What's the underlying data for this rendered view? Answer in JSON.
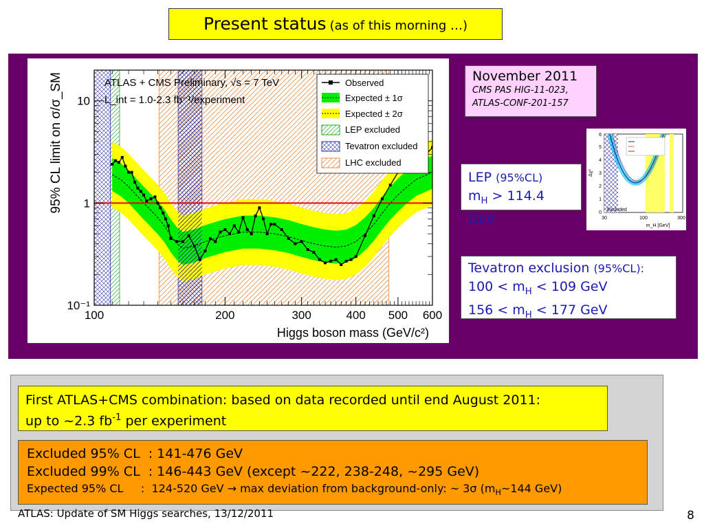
{
  "slide": {
    "title": "Present status",
    "title_sub": "(as of this morning …)",
    "footer": "ATLAS: Update of SM Higgs searches, 13/12/2011",
    "page_number": "8"
  },
  "november_box": {
    "title": "November 2011",
    "ref1": "CMS PAS HIG-11-023,",
    "ref2": "ATLAS-CONF-201-157"
  },
  "lep_box": {
    "line1_main": "LEP",
    "line1_sub": "(95%CL)",
    "line2_pre": "m",
    "line2_sub": "H",
    "line2_post": " > 114.4 GeV"
  },
  "tevatron_box": {
    "title": "Tevatron exclusion",
    "title_sub": "(95%CL):",
    "range1_pre": "100 < m",
    "range1_sub": "H",
    "range1_post": " < 109 GeV",
    "range2_pre": "156 < m",
    "range2_sub": "H",
    "range2_post": " < 177 GeV"
  },
  "combination_box": {
    "line1": "First ATLAS+CMS combination: based on data recorded until end August 2011:",
    "line2_pre": "up to ~2.3 fb",
    "line2_sup": "-1",
    "line2_post": " per experiment"
  },
  "results_box": {
    "line1": "Excluded 95% CL  : 141-476 GeV",
    "line2": "Excluded 99% CL  : 146-443 GeV (except ~222, 238-248, ~295 GeV)",
    "line3_pre": "Expected 95% CL     :  124-520 GeV → max deviation from background-only: ~ 3σ (m",
    "line3_sub": "H",
    "line3_post": "~144 GeV)"
  },
  "lep_thumbnail": {
    "label_excluded": "Excluded",
    "xlabel": "m_H [GeV]",
    "ylabel": "Δχ²",
    "ticks_x": [
      "30",
      "100",
      "300"
    ],
    "ticks_y": [
      "0",
      "1",
      "2",
      "3",
      "4",
      "5",
      "6"
    ]
  },
  "chart_data": {
    "type": "line",
    "plot_title": "ATLAS + CMS Preliminary, √s = 7 TeV",
    "luminosity": "L_int = 1.0-2.3 fb⁻¹/experiment",
    "xlabel": "Higgs boson mass (GeV/c²)",
    "ylabel": "95% CL limit on σ/σ_SM",
    "xscale": "log",
    "yscale": "log",
    "xlim": [
      100,
      600
    ],
    "ylim": [
      0.1,
      20
    ],
    "x_ticks": [
      "100",
      "200",
      "300",
      "400",
      "500",
      "600"
    ],
    "y_ticks": [
      "10⁻¹",
      "1",
      "10"
    ],
    "legend": [
      "Observed",
      "Expected ± 1σ",
      "Expected ± 2σ",
      "LEP excluded",
      "Tevatron excluded",
      "LHC excluded"
    ],
    "reference_line": 1,
    "excluded_regions": {
      "LEP": [
        100,
        114.4
      ],
      "Tevatron": [
        [
          100,
          109
        ],
        [
          156,
          177
        ]
      ],
      "LHC": [
        141,
        476
      ]
    },
    "series": [
      {
        "name": "Observed",
        "x": [
          110,
          112,
          114,
          116,
          118,
          120,
          122,
          124,
          126,
          128,
          130,
          132,
          135,
          138,
          140,
          142,
          144,
          146,
          148,
          150,
          155,
          160,
          165,
          170,
          175,
          180,
          185,
          190,
          195,
          200,
          205,
          210,
          215,
          220,
          225,
          230,
          235,
          240,
          245,
          250,
          255,
          260,
          270,
          280,
          290,
          300,
          310,
          320,
          330,
          340,
          350,
          360,
          370,
          380,
          390,
          400,
          420,
          440,
          460,
          480,
          500,
          520,
          540,
          560,
          580,
          600
        ],
        "values": [
          2.4,
          2.6,
          2.5,
          2.8,
          2.3,
          2.0,
          2.0,
          1.6,
          1.4,
          1.3,
          1.2,
          1.05,
          1.1,
          1.15,
          1.0,
          0.9,
          0.8,
          0.7,
          0.6,
          0.45,
          0.42,
          0.42,
          0.48,
          0.38,
          0.28,
          0.34,
          0.45,
          0.42,
          0.52,
          0.55,
          0.5,
          0.6,
          0.52,
          0.72,
          0.55,
          0.5,
          0.75,
          0.9,
          0.7,
          0.5,
          0.62,
          0.62,
          0.55,
          0.45,
          0.4,
          0.42,
          0.35,
          0.33,
          0.28,
          0.26,
          0.27,
          0.28,
          0.25,
          0.27,
          0.28,
          0.3,
          0.48,
          0.75,
          1.1,
          1.5,
          2.0,
          2.5,
          3.0,
          3.5,
          3.0,
          3.5
        ]
      },
      {
        "name": "Expected",
        "x": [
          110,
          115,
          120,
          125,
          130,
          135,
          140,
          145,
          150,
          155,
          160,
          170,
          180,
          190,
          200,
          220,
          240,
          260,
          280,
          300,
          320,
          340,
          360,
          380,
          400,
          420,
          440,
          460,
          480,
          500,
          520,
          550,
          600
        ],
        "values": [
          1.9,
          1.7,
          1.45,
          1.2,
          1.0,
          0.85,
          0.72,
          0.6,
          0.48,
          0.4,
          0.36,
          0.38,
          0.42,
          0.45,
          0.48,
          0.52,
          0.52,
          0.5,
          0.47,
          0.43,
          0.4,
          0.38,
          0.37,
          0.38,
          0.42,
          0.5,
          0.62,
          0.8,
          1.0,
          1.2,
          1.4,
          1.7,
          2.0
        ]
      }
    ]
  }
}
